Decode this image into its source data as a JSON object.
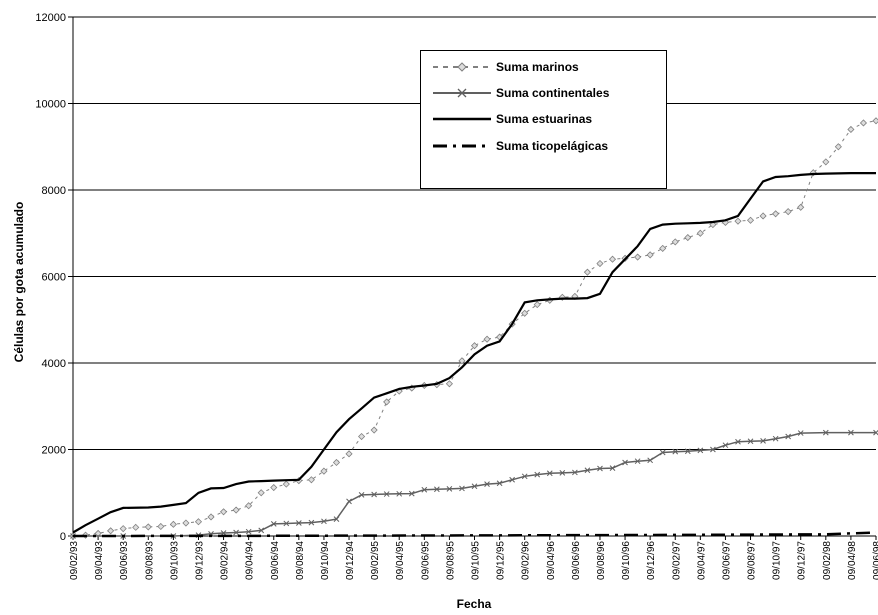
{
  "chart_data": {
    "type": "line",
    "xlabel": "Fecha",
    "ylabel": "Células por gota acumulado",
    "ylim": [
      0,
      12000
    ],
    "yticks": [
      "0",
      "2000",
      "4000",
      "6000",
      "8000",
      "10000",
      "12000"
    ],
    "x_tick_labels": [
      "09/02/93",
      "09/04/93",
      "09/06/93",
      "09/08/93",
      "09/10/93",
      "09/12/93",
      "09/02/94",
      "09/04/94",
      "09/06/94",
      "09/08/94",
      "09/10/94",
      "09/12/94",
      "09/02/95",
      "09/04/95",
      "09/06/95",
      "09/08/95",
      "09/10/95",
      "09/12/95",
      "09/02/96",
      "09/04/96",
      "09/06/96",
      "09/08/96",
      "09/10/96",
      "09/12/96",
      "09/02/97",
      "09/04/97",
      "09/06/97",
      "09/08/97",
      "09/10/97",
      "09/12/97",
      "09/02/98",
      "09/04/98",
      "09/06/98"
    ],
    "grid": "horizontal",
    "legend_position": "top-right",
    "series": [
      {
        "name": "Suma marinos",
        "style": "dashed-diamond",
        "color": "#808080",
        "points": [
          [
            0,
            0
          ],
          [
            0.5,
            20
          ],
          [
            1,
            60
          ],
          [
            1.5,
            120
          ],
          [
            2,
            170
          ],
          [
            2.5,
            200
          ],
          [
            3,
            210
          ],
          [
            3.5,
            220
          ],
          [
            4,
            270
          ],
          [
            4.5,
            300
          ],
          [
            5,
            330
          ],
          [
            5.5,
            440
          ],
          [
            6,
            560
          ],
          [
            6.5,
            600
          ],
          [
            7,
            700
          ],
          [
            7.5,
            1000
          ],
          [
            8,
            1120
          ],
          [
            8.5,
            1200
          ],
          [
            9,
            1280
          ],
          [
            9.5,
            1300
          ],
          [
            10,
            1500
          ],
          [
            10.5,
            1700
          ],
          [
            11,
            1900
          ],
          [
            11.5,
            2300
          ],
          [
            12,
            2450
          ],
          [
            12.5,
            3100
          ],
          [
            13,
            3350
          ],
          [
            13.5,
            3420
          ],
          [
            14,
            3480
          ],
          [
            14.5,
            3500
          ],
          [
            15,
            3520
          ],
          [
            15.5,
            4050
          ],
          [
            16,
            4400
          ],
          [
            16.5,
            4550
          ],
          [
            17,
            4600
          ],
          [
            17.5,
            4900
          ],
          [
            18,
            5150
          ],
          [
            18.5,
            5350
          ],
          [
            19,
            5450
          ],
          [
            19.5,
            5520
          ],
          [
            20,
            5540
          ],
          [
            20.5,
            6100
          ],
          [
            21,
            6300
          ],
          [
            21.5,
            6400
          ],
          [
            22,
            6420
          ],
          [
            22.5,
            6450
          ],
          [
            23,
            6500
          ],
          [
            23.5,
            6650
          ],
          [
            24,
            6800
          ],
          [
            24.5,
            6900
          ],
          [
            25,
            7000
          ],
          [
            25.5,
            7200
          ],
          [
            26,
            7250
          ],
          [
            26.5,
            7280
          ],
          [
            27,
            7300
          ],
          [
            27.5,
            7400
          ],
          [
            28,
            7450
          ],
          [
            28.5,
            7500
          ],
          [
            29,
            7600
          ],
          [
            29.5,
            8400
          ],
          [
            30,
            8650
          ],
          [
            30.5,
            9000
          ],
          [
            31,
            9400
          ],
          [
            31.5,
            9550
          ],
          [
            32,
            9600
          ]
        ]
      },
      {
        "name": "Suma continentales",
        "style": "solid-x",
        "color": "#606060",
        "points": [
          [
            0,
            0
          ],
          [
            2,
            0
          ],
          [
            4,
            0
          ],
          [
            5,
            20
          ],
          [
            5.5,
            50
          ],
          [
            6,
            70
          ],
          [
            6.5,
            80
          ],
          [
            7,
            100
          ],
          [
            7.5,
            130
          ],
          [
            8,
            280
          ],
          [
            8.5,
            290
          ],
          [
            9,
            300
          ],
          [
            9.5,
            310
          ],
          [
            10,
            340
          ],
          [
            10.5,
            390
          ],
          [
            11,
            800
          ],
          [
            11.5,
            950
          ],
          [
            12,
            960
          ],
          [
            12.5,
            970
          ],
          [
            13,
            975
          ],
          [
            13.5,
            980
          ],
          [
            14,
            1070
          ],
          [
            14.5,
            1080
          ],
          [
            15,
            1090
          ],
          [
            15.5,
            1100
          ],
          [
            16,
            1150
          ],
          [
            16.5,
            1200
          ],
          [
            17,
            1220
          ],
          [
            17.5,
            1300
          ],
          [
            18,
            1380
          ],
          [
            18.5,
            1420
          ],
          [
            19,
            1450
          ],
          [
            19.5,
            1460
          ],
          [
            20,
            1470
          ],
          [
            20.5,
            1520
          ],
          [
            21,
            1560
          ],
          [
            21.5,
            1570
          ],
          [
            22,
            1700
          ],
          [
            22.5,
            1730
          ],
          [
            23,
            1750
          ],
          [
            23.5,
            1930
          ],
          [
            24,
            1950
          ],
          [
            24.5,
            1960
          ],
          [
            25,
            1980
          ],
          [
            25.5,
            2000
          ],
          [
            26,
            2100
          ],
          [
            26.5,
            2180
          ],
          [
            27,
            2190
          ],
          [
            27.5,
            2200
          ],
          [
            28,
            2250
          ],
          [
            28.5,
            2300
          ],
          [
            29,
            2380
          ],
          [
            30,
            2390
          ],
          [
            31,
            2390
          ],
          [
            32,
            2390
          ]
        ]
      },
      {
        "name": "Suma estuarinas",
        "style": "solid",
        "color": "#000000",
        "points": [
          [
            0,
            80
          ],
          [
            0.5,
            250
          ],
          [
            1,
            400
          ],
          [
            1.5,
            550
          ],
          [
            2,
            650
          ],
          [
            3,
            660
          ],
          [
            3.5,
            680
          ],
          [
            4,
            720
          ],
          [
            4.5,
            760
          ],
          [
            5,
            1000
          ],
          [
            5.5,
            1100
          ],
          [
            6,
            1110
          ],
          [
            6.5,
            1200
          ],
          [
            7,
            1260
          ],
          [
            7.5,
            1270
          ],
          [
            8,
            1280
          ],
          [
            8.5,
            1290
          ],
          [
            9,
            1300
          ],
          [
            9.5,
            1600
          ],
          [
            10,
            2000
          ],
          [
            10.5,
            2400
          ],
          [
            11,
            2700
          ],
          [
            11.5,
            2950
          ],
          [
            12,
            3200
          ],
          [
            12.5,
            3300
          ],
          [
            13,
            3400
          ],
          [
            13.5,
            3450
          ],
          [
            14,
            3480
          ],
          [
            14.5,
            3520
          ],
          [
            15,
            3650
          ],
          [
            15.5,
            3900
          ],
          [
            16,
            4200
          ],
          [
            16.5,
            4400
          ],
          [
            17,
            4500
          ],
          [
            17.5,
            4900
          ],
          [
            18,
            5400
          ],
          [
            18.5,
            5450
          ],
          [
            19,
            5470
          ],
          [
            19.5,
            5490
          ],
          [
            20,
            5490
          ],
          [
            20.5,
            5500
          ],
          [
            21,
            5600
          ],
          [
            21.5,
            6100
          ],
          [
            22,
            6400
          ],
          [
            22.5,
            6700
          ],
          [
            23,
            7100
          ],
          [
            23.5,
            7200
          ],
          [
            24,
            7220
          ],
          [
            24.5,
            7230
          ],
          [
            25,
            7240
          ],
          [
            25.5,
            7260
          ],
          [
            26,
            7300
          ],
          [
            26.5,
            7400
          ],
          [
            27,
            7800
          ],
          [
            27.5,
            8200
          ],
          [
            28,
            8300
          ],
          [
            28.5,
            8320
          ],
          [
            29,
            8350
          ],
          [
            29.5,
            8370
          ],
          [
            30,
            8380
          ],
          [
            31,
            8390
          ],
          [
            32,
            8390
          ]
        ]
      },
      {
        "name": "Suma ticopelágicas",
        "style": "dash-dot",
        "color": "#000000",
        "points": [
          [
            0,
            0
          ],
          [
            8,
            5
          ],
          [
            16,
            15
          ],
          [
            24,
            25
          ],
          [
            30,
            40
          ],
          [
            31,
            60
          ],
          [
            32,
            80
          ]
        ]
      }
    ]
  }
}
